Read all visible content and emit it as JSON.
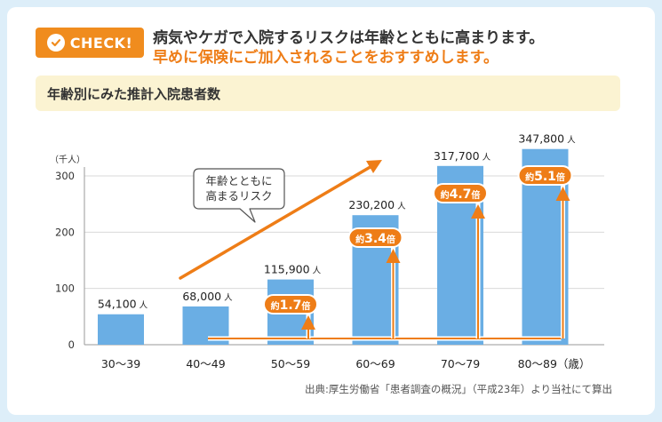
{
  "header": {
    "check_label": "CHECK!",
    "headline_1": "病気やケガで入院するリスクは年齢とともに高まります。",
    "headline_2": "早めに保険にご加入されることをおすすめします。"
  },
  "chart_data": {
    "type": "bar",
    "title": "年齢別にみた推計入院患者数",
    "unit_label": "（千人）",
    "categories": [
      "30～39",
      "40～49",
      "50～59",
      "60～69",
      "70～79",
      "80～89"
    ],
    "category_suffix": "（歳）",
    "values": [
      54.1,
      68.0,
      115.9,
      230.2,
      317.7,
      347.8
    ],
    "value_labels": [
      "54,100",
      "68,000",
      "115,900",
      "230,200",
      "317,700",
      "347,800"
    ],
    "value_unit": "人",
    "ylim": [
      0,
      300
    ],
    "yticks": [
      0,
      100,
      200,
      300
    ],
    "multipliers": [
      null,
      null,
      {
        "prefix": "約",
        "value": "1.7",
        "suffix": "倍"
      },
      {
        "prefix": "約",
        "value": "3.4",
        "suffix": "倍"
      },
      {
        "prefix": "約",
        "value": "4.7",
        "suffix": "倍"
      },
      {
        "prefix": "約",
        "value": "5.1",
        "suffix": "倍"
      }
    ],
    "trend_callout": [
      "年齢とともに",
      "高まるリスク"
    ],
    "colors": {
      "bar": "#6aaee4",
      "accent": "#ee7d17",
      "axis": "#9a9a9a"
    }
  },
  "footer": {
    "source": "出典:厚生労働省「患者調査の概況」（平成23年）より当社にて算出"
  }
}
